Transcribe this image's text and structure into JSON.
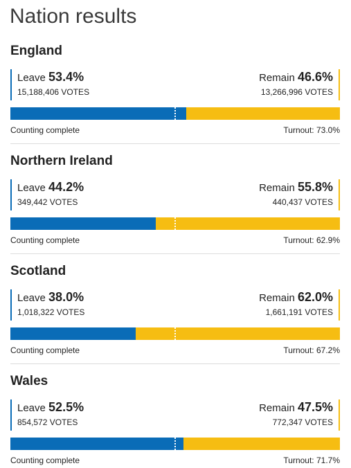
{
  "page": {
    "title": "Nation results"
  },
  "nations": [
    {
      "name": "England",
      "leave": {
        "label": "Leave",
        "pct": "53.4%",
        "votes": "15,188,406 VOTES",
        "share": 53.4
      },
      "remain": {
        "label": "Remain",
        "pct": "46.6%",
        "votes": "13,266,996 VOTES"
      },
      "status": "Counting complete",
      "turnout": "Turnout: 73.0%"
    },
    {
      "name": "Northern Ireland",
      "leave": {
        "label": "Leave",
        "pct": "44.2%",
        "votes": "349,442 VOTES",
        "share": 44.2
      },
      "remain": {
        "label": "Remain",
        "pct": "55.8%",
        "votes": "440,437 VOTES"
      },
      "status": "Counting complete",
      "turnout": "Turnout: 62.9%"
    },
    {
      "name": "Scotland",
      "leave": {
        "label": "Leave",
        "pct": "38.0%",
        "votes": "1,018,322 VOTES",
        "share": 38.0
      },
      "remain": {
        "label": "Remain",
        "pct": "62.0%",
        "votes": "1,661,191 VOTES"
      },
      "status": "Counting complete",
      "turnout": "Turnout: 67.2%"
    },
    {
      "name": "Wales",
      "leave": {
        "label": "Leave",
        "pct": "52.5%",
        "votes": "854,572 VOTES",
        "share": 52.5
      },
      "remain": {
        "label": "Remain",
        "pct": "47.5%",
        "votes": "772,347 VOTES"
      },
      "status": "Counting complete",
      "turnout": "Turnout: 71.7%"
    }
  ],
  "colors": {
    "leave": "#0a6cb7",
    "remain": "#f6bd12"
  }
}
